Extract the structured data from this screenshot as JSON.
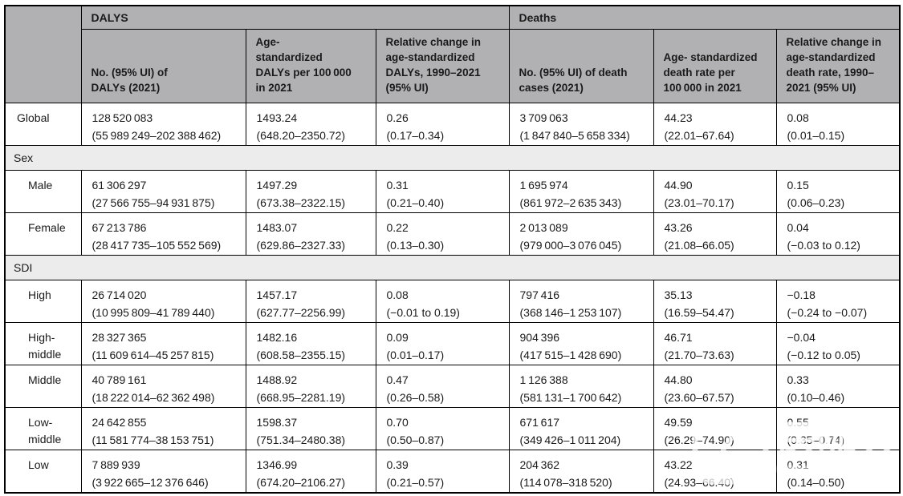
{
  "colors": {
    "header_bg": "#b1b1b3",
    "section_bg": "#ececec",
    "border": "#000000",
    "text": "#1a1a1a",
    "watermark": "#ffffff"
  },
  "table": {
    "group_headers": [
      {
        "label": "DALYS"
      },
      {
        "label": "Deaths"
      }
    ],
    "columns": [
      "No. (95% UI) of\nDALYs (2021)",
      "Age-\nstandardized\nDALYs per 100 000\nin 2021",
      "Relative change in\nage-standardized\nDALYs, 1990–2021\n(95% UI)",
      "No. (95% UI) of death\ncases (2021)",
      "Age- standardized\ndeath rate per\n100 000 in 2021",
      "Relative change in\nage-standardized\ndeath rate, 1990–\n2021 (95% UI)"
    ],
    "rows": [
      {
        "type": "row",
        "label": "Global",
        "indent": 1,
        "cells": [
          "128 520 083\n(55 989 249–202 388 462)",
          "1493.24\n(648.20–2350.72)",
          "0.26\n(0.17–0.34)",
          "3 709 063\n(1 847 840–5 658 334)",
          "44.23\n(22.01–67.64)",
          "0.08\n(0.01–0.15)"
        ]
      },
      {
        "type": "section",
        "label": "Sex"
      },
      {
        "type": "row",
        "label": "Male",
        "indent": 2,
        "cells": [
          "61 306 297\n(27 566 755–94 931 875)",
          "1497.29\n(673.38–2322.15)",
          "0.31\n(0.21–0.40)",
          "1 695 974\n(861 972–2 635 343)",
          "44.90\n(23.01–70.17)",
          "0.15\n(0.06–0.23)"
        ]
      },
      {
        "type": "row",
        "label": "Female",
        "indent": 2,
        "cells": [
          "67 213 786\n(28 417 735–105 552 569)",
          "1483.07\n(629.86–2327.33)",
          "0.22\n(0.13–0.30)",
          "2 013 089\n(979 000–3 076 045)",
          "43.26\n(21.08–66.05)",
          "0.04\n(−0.03 to 0.12)"
        ]
      },
      {
        "type": "section",
        "label": "SDI"
      },
      {
        "type": "row",
        "label": "High",
        "indent": 2,
        "cells": [
          "26 714 020\n(10 995 809–41 789 440)",
          "1457.17\n(627.77–2256.99)",
          "0.08\n(−0.01 to 0.19)",
          "797 416\n(368 146–1 253 107)",
          "35.13\n(16.59–54.47)",
          "−0.18\n(−0.24 to −0.07)"
        ]
      },
      {
        "type": "row",
        "label": "High-middle",
        "indent": 2,
        "cells": [
          "28 327 365\n(11 609 614–45 257 815)",
          "1482.16\n(608.58–2355.15)",
          "0.09\n(0.01–0.17)",
          "904 396\n(417 515–1 428 690)",
          "46.71\n(21.70–73.63)",
          "−0.04\n(−0.12 to 0.05)"
        ]
      },
      {
        "type": "row",
        "label": "Middle",
        "indent": 2,
        "cells": [
          "40 789 161\n(18 222 014–62 362 498)",
          "1488.92\n(668.95–2281.19)",
          "0.47\n(0.26–0.58)",
          "1 126 388\n(581 131–1 700 642)",
          "44.80\n(23.60–67.57)",
          "0.33\n(0.10–0.46)"
        ]
      },
      {
        "type": "row",
        "label": "Low-middle",
        "indent": 2,
        "cells": [
          "24 642 855\n(11 581 774–38 153 751)",
          "1598.37\n(751.34–2480.38)",
          "0.70\n(0.50–0.87)",
          "671 617\n(349 426–1 011 204)",
          "49.59\n(26.29–74.90)",
          "0.55\n(0.35–0.74)"
        ]
      },
      {
        "type": "row",
        "label": "Low",
        "indent": 2,
        "cells": [
          "7 889 939\n(3 922 665–12 376 646)",
          "1346.99\n(674.20–2106.27)",
          "0.39\n(0.21–0.57)",
          "204 362\n(114 078–318 520)",
          "43.22\n(24.93–66.40)",
          "0.31\n(0.14–0.50)"
        ]
      }
    ]
  },
  "watermark": {
    "text": "医咖会",
    "icon": "yikahui-logo-icon"
  }
}
